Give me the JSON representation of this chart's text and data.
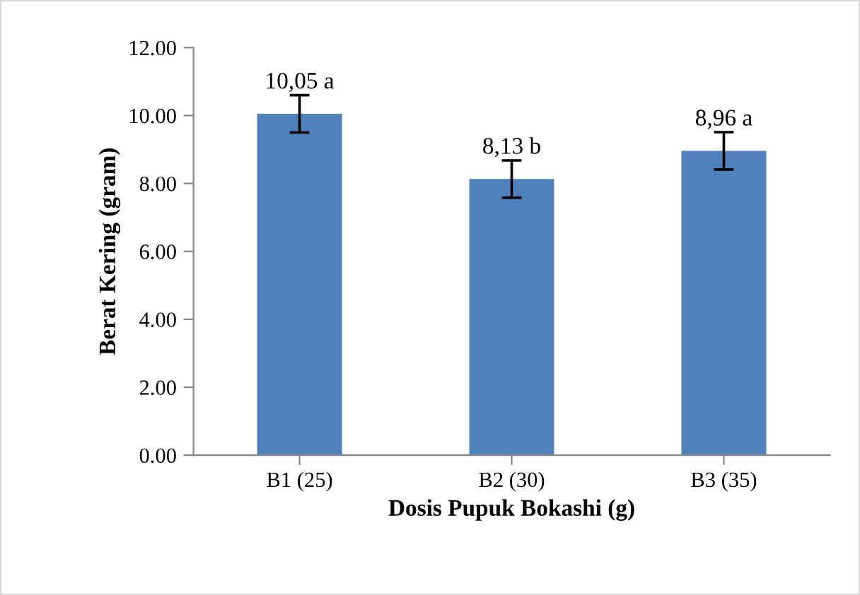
{
  "chart_data": {
    "type": "bar",
    "xlabel": "Dosis Pupuk Bokashi (g)",
    "ylabel": "Berat Kering (gram)",
    "categories": [
      "B1 (25)",
      "B2 (30)",
      "B3 (35)"
    ],
    "values": [
      10.05,
      8.13,
      8.96
    ],
    "errors": [
      0.55,
      0.55,
      0.55
    ],
    "value_labels": [
      "10,05 a",
      "8,13 b",
      "8,96 a"
    ],
    "color": "#4f81bd",
    "ylim": [
      0,
      12
    ],
    "yticks": [
      {
        "value": 0,
        "label": "0.00"
      },
      {
        "value": 2,
        "label": "2.00"
      },
      {
        "value": 4,
        "label": "4.00"
      },
      {
        "value": 6,
        "label": "6.00"
      },
      {
        "value": 8,
        "label": "8.00"
      },
      {
        "value": 10,
        "label": "10.00"
      },
      {
        "value": 12,
        "label": "12.00"
      }
    ],
    "grid": false,
    "legend": false
  }
}
